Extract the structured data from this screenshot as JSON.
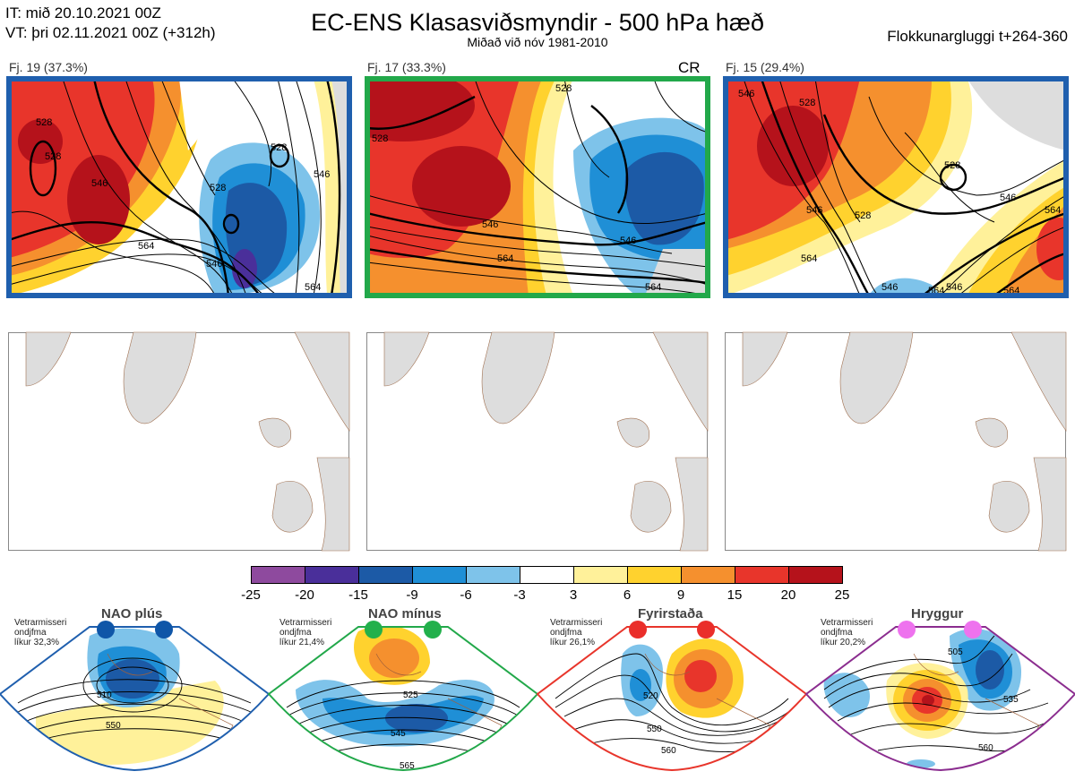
{
  "header": {
    "it_line": "IT: mið 20.10.2021 00Z",
    "vt_line": "VT: þri 02.11.2021 00Z  (+312h)",
    "title": "EC-ENS Klasasviðsmyndir - 500 hPa hæð",
    "subtitle": "Miðað við nóv 1981-2010",
    "window": "Flokkunargluggi t+264-360"
  },
  "clusters": [
    {
      "label": "Fj. 19 (37.3%)",
      "border_color": "#1f5fae",
      "contours": [
        "528",
        "528",
        "546",
        "564",
        "546",
        "528",
        "528",
        "546",
        "564"
      ]
    },
    {
      "label": "Fj. 17 (33.3%)",
      "border_color": "#22a84a",
      "tag": "CR",
      "contours": [
        "528",
        "546",
        "564",
        "546",
        "528",
        "564"
      ]
    },
    {
      "label": "Fj. 15 (29.4%)",
      "border_color": "#1f5fae",
      "contours": [
        "546",
        "528",
        "546",
        "528",
        "528",
        "546",
        "564",
        "564",
        "546",
        "564",
        "546",
        "564"
      ]
    }
  ],
  "colorbar": {
    "ticks": [
      "-25",
      "-20",
      "-15",
      "-9",
      "-6",
      "-3",
      "3",
      "6",
      "9",
      "15",
      "20",
      "25"
    ],
    "colors": [
      "#8e4a9e",
      "#4a2f9a",
      "#1c5aa6",
      "#1f8fd6",
      "#7ec3ea",
      "#ffffff",
      "#fff19a",
      "#ffd22e",
      "#f5902e",
      "#e8352b",
      "#b5121b"
    ]
  },
  "regimes": [
    {
      "name": "NAO plús",
      "note": [
        "Vetrarmisseri",
        "ondjfma",
        "líkur 32,3%"
      ],
      "color": "#1f5fae",
      "dot_color": "#0f56a8",
      "contours": [
        "510",
        "550"
      ]
    },
    {
      "name": "NAO mínus",
      "note": [
        "Vetrarmisseri",
        "ondjfma",
        "líkur 21,4%"
      ],
      "color": "#22a84a",
      "dot_color": "#22b04b",
      "contours": [
        "525",
        "545",
        "565"
      ]
    },
    {
      "name": "Fyrirstaða",
      "note": [
        "Vetrarmisseri",
        "ondjfma",
        "líkur 26,1%"
      ],
      "color": "#e8352b",
      "dot_color": "#ea2e2a",
      "contours": [
        "520",
        "550",
        "560"
      ]
    },
    {
      "name": "Hryggur",
      "note": [
        "Vetrarmisseri",
        "ondjfma",
        "líkur 20,2%"
      ],
      "color": "#8b2d8f",
      "dot_color": "#ee72ee",
      "contours": [
        "505",
        "535",
        "560"
      ]
    }
  ]
}
